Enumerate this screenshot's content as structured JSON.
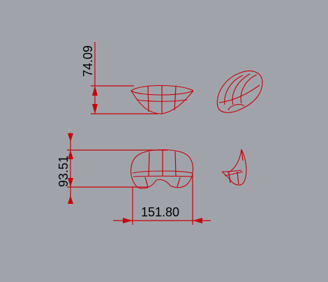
{
  "viewport": {
    "background": "#a0a4aa",
    "line_color": "#c8000a"
  },
  "dimensions": {
    "top_vertical": "74.09",
    "bottom_vertical": "93.51",
    "bottom_horizontal": "151.80"
  }
}
